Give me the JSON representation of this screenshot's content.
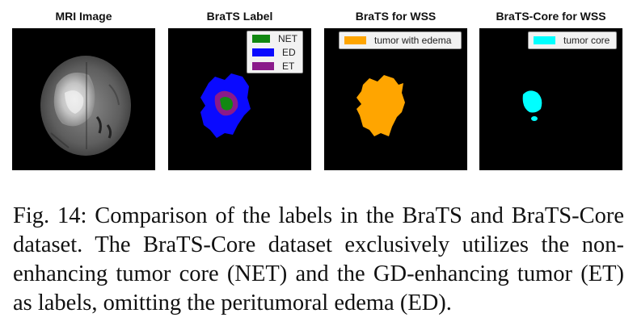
{
  "panels": [
    {
      "title": "MRI Image"
    },
    {
      "title": "BraTS Label"
    },
    {
      "title": "BraTS for WSS"
    },
    {
      "title": "BraTS-Core for WSS"
    }
  ],
  "legends": {
    "brats": [
      {
        "label": "NET",
        "color": "#118811"
      },
      {
        "label": "ED",
        "color": "#0a0aff"
      },
      {
        "label": "ET",
        "color": "#8a1a8a"
      }
    ],
    "wss": [
      {
        "label": "tumor with edema",
        "color": "#ffa500"
      }
    ],
    "core": [
      {
        "label": "tumor core",
        "color": "#00ffff"
      }
    ]
  },
  "caption": "Fig. 14: Comparison of the labels in the BraTS and BraTS-Core dataset. The BraTS-Core dataset exclusively utilizes the non-enhancing tumor core (NET) and the GD-enhancing tumor (ET) as labels, omitting the peritumoral edema (ED)."
}
